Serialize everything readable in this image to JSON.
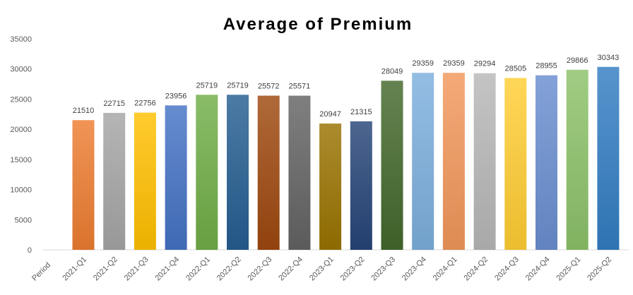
{
  "chart_data": {
    "type": "bar",
    "title": "Average of Premium",
    "xlabel": "Period",
    "categories": [
      "2021-Q1",
      "2021-Q2",
      "2021-Q3",
      "2021-Q4",
      "2022-Q1",
      "2022-Q2",
      "2022-Q3",
      "2022-Q4",
      "2023-Q1",
      "2023-Q2",
      "2023-Q3",
      "2023-Q4",
      "2024-Q1",
      "2024-Q2",
      "2024-Q3",
      "2024-Q4",
      "2025-Q1",
      "2025-Q2"
    ],
    "values": [
      21510,
      22715,
      22756,
      23956,
      25719,
      25719,
      25572,
      25571,
      20947,
      21315,
      28049,
      29359,
      29359,
      29294,
      28505,
      28955,
      29866,
      30343
    ],
    "ylim": [
      0,
      35000
    ],
    "yticks": [
      0,
      5000,
      10000,
      15000,
      20000,
      25000,
      30000,
      35000
    ],
    "grid": false,
    "data_labels": true,
    "bar_colors": [
      "#ED7D31",
      "#A5A5A5",
      "#FFC000",
      "#4472C4",
      "#70AD47",
      "#255E91",
      "#9E480E",
      "#636363",
      "#997300",
      "#264478",
      "#43682B",
      "#7CAFDD",
      "#F1975A",
      "#B7B7B7",
      "#FFCD33",
      "#698ED0",
      "#8CC168",
      "#327DC2"
    ]
  }
}
